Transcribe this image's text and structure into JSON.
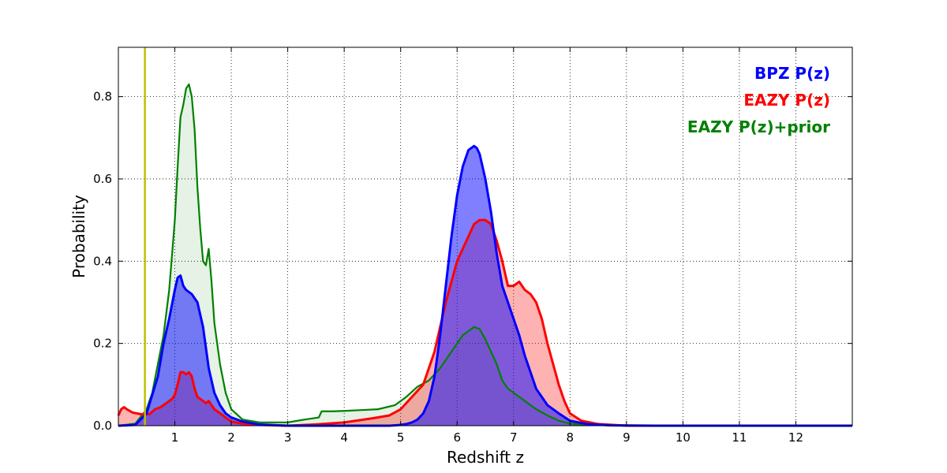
{
  "chart_data": {
    "type": "area",
    "xlabel": "Redshift z",
    "ylabel": "Probability",
    "xlim": [
      0,
      13
    ],
    "ylim": [
      0,
      0.92
    ],
    "xticks": [
      1,
      2,
      3,
      4,
      5,
      6,
      7,
      8,
      9,
      10,
      11,
      12
    ],
    "yticks": [
      0.0,
      0.2,
      0.4,
      0.6,
      0.8
    ],
    "grid": true,
    "legend_position": "top-right",
    "vertical_line": {
      "x": 0.47,
      "color": "#bfbf00"
    },
    "series": [
      {
        "name": "BPZ P(z)",
        "color": "#0000ff",
        "fill_opacity": 0.5,
        "x": [
          0.0,
          0.3,
          0.5,
          0.7,
          0.8,
          0.9,
          1.0,
          1.05,
          1.1,
          1.15,
          1.2,
          1.3,
          1.4,
          1.5,
          1.6,
          1.7,
          1.8,
          1.9,
          2.0,
          2.2,
          2.5,
          3.0,
          4.0,
          4.8,
          5.0,
          5.1,
          5.2,
          5.3,
          5.4,
          5.5,
          5.6,
          5.7,
          5.8,
          5.9,
          6.0,
          6.1,
          6.2,
          6.3,
          6.35,
          6.4,
          6.5,
          6.6,
          6.7,
          6.8,
          6.9,
          7.0,
          7.1,
          7.2,
          7.3,
          7.4,
          7.5,
          7.6,
          7.8,
          8.0,
          8.3,
          8.7,
          9.5,
          13.0
        ],
        "y": [
          0.0,
          0.002,
          0.03,
          0.12,
          0.2,
          0.26,
          0.33,
          0.36,
          0.365,
          0.34,
          0.33,
          0.32,
          0.3,
          0.24,
          0.14,
          0.08,
          0.05,
          0.03,
          0.02,
          0.01,
          0.003,
          0.0,
          0.0,
          0.0,
          0.002,
          0.004,
          0.008,
          0.015,
          0.03,
          0.06,
          0.12,
          0.22,
          0.34,
          0.46,
          0.56,
          0.63,
          0.67,
          0.68,
          0.675,
          0.66,
          0.6,
          0.52,
          0.42,
          0.34,
          0.3,
          0.26,
          0.22,
          0.17,
          0.13,
          0.09,
          0.07,
          0.05,
          0.03,
          0.012,
          0.004,
          0.001,
          0.0,
          0.0
        ]
      },
      {
        "name": "EAZY P(z)",
        "color": "#ff0000",
        "fill_opacity": 0.3,
        "x": [
          0.0,
          0.05,
          0.1,
          0.15,
          0.25,
          0.4,
          0.55,
          0.65,
          0.75,
          0.85,
          0.95,
          1.0,
          1.05,
          1.1,
          1.15,
          1.2,
          1.25,
          1.3,
          1.35,
          1.4,
          1.5,
          1.55,
          1.6,
          1.7,
          1.8,
          1.9,
          2.0,
          2.2,
          2.5,
          3.0,
          3.5,
          4.0,
          4.5,
          4.8,
          5.0,
          5.2,
          5.4,
          5.6,
          5.8,
          6.0,
          6.2,
          6.3,
          6.4,
          6.5,
          6.6,
          6.7,
          6.8,
          6.9,
          7.0,
          7.1,
          7.2,
          7.3,
          7.4,
          7.5,
          7.6,
          7.7,
          7.8,
          7.9,
          8.0,
          8.2,
          8.5,
          9.0,
          13.0
        ],
        "y": [
          0.025,
          0.04,
          0.045,
          0.04,
          0.032,
          0.028,
          0.028,
          0.04,
          0.045,
          0.055,
          0.065,
          0.075,
          0.1,
          0.13,
          0.13,
          0.125,
          0.13,
          0.12,
          0.09,
          0.07,
          0.06,
          0.055,
          0.06,
          0.04,
          0.03,
          0.02,
          0.01,
          0.005,
          0.002,
          0.0,
          0.003,
          0.008,
          0.018,
          0.025,
          0.04,
          0.07,
          0.1,
          0.18,
          0.3,
          0.4,
          0.46,
          0.49,
          0.5,
          0.5,
          0.49,
          0.45,
          0.4,
          0.34,
          0.34,
          0.35,
          0.33,
          0.32,
          0.3,
          0.26,
          0.2,
          0.15,
          0.1,
          0.06,
          0.03,
          0.012,
          0.004,
          0.0,
          0.0
        ]
      },
      {
        "name": "EAZY P(z)+prior",
        "color": "#008000",
        "fill_opacity": 0.1,
        "x": [
          0.0,
          0.3,
          0.5,
          0.6,
          0.7,
          0.8,
          0.9,
          1.0,
          1.05,
          1.1,
          1.15,
          1.2,
          1.25,
          1.3,
          1.35,
          1.4,
          1.45,
          1.5,
          1.55,
          1.6,
          1.65,
          1.7,
          1.8,
          1.9,
          2.0,
          2.2,
          2.5,
          3.0,
          3.3,
          3.55,
          3.6,
          3.8,
          4.0,
          4.3,
          4.6,
          4.9,
          5.1,
          5.3,
          5.5,
          5.7,
          5.9,
          6.1,
          6.3,
          6.4,
          6.5,
          6.6,
          6.7,
          6.8,
          6.9,
          7.0,
          7.2,
          7.4,
          7.6,
          7.8,
          8.0,
          8.3,
          8.7,
          9.5,
          13.0
        ],
        "y": [
          0.0,
          0.005,
          0.04,
          0.08,
          0.15,
          0.22,
          0.33,
          0.5,
          0.63,
          0.75,
          0.78,
          0.82,
          0.83,
          0.8,
          0.72,
          0.58,
          0.48,
          0.4,
          0.39,
          0.43,
          0.35,
          0.25,
          0.15,
          0.08,
          0.04,
          0.015,
          0.008,
          0.008,
          0.015,
          0.02,
          0.035,
          0.035,
          0.036,
          0.038,
          0.04,
          0.05,
          0.07,
          0.095,
          0.11,
          0.14,
          0.18,
          0.22,
          0.24,
          0.235,
          0.21,
          0.18,
          0.15,
          0.11,
          0.09,
          0.08,
          0.06,
          0.04,
          0.025,
          0.012,
          0.005,
          0.002,
          0.001,
          0.0,
          0.0
        ]
      }
    ]
  }
}
